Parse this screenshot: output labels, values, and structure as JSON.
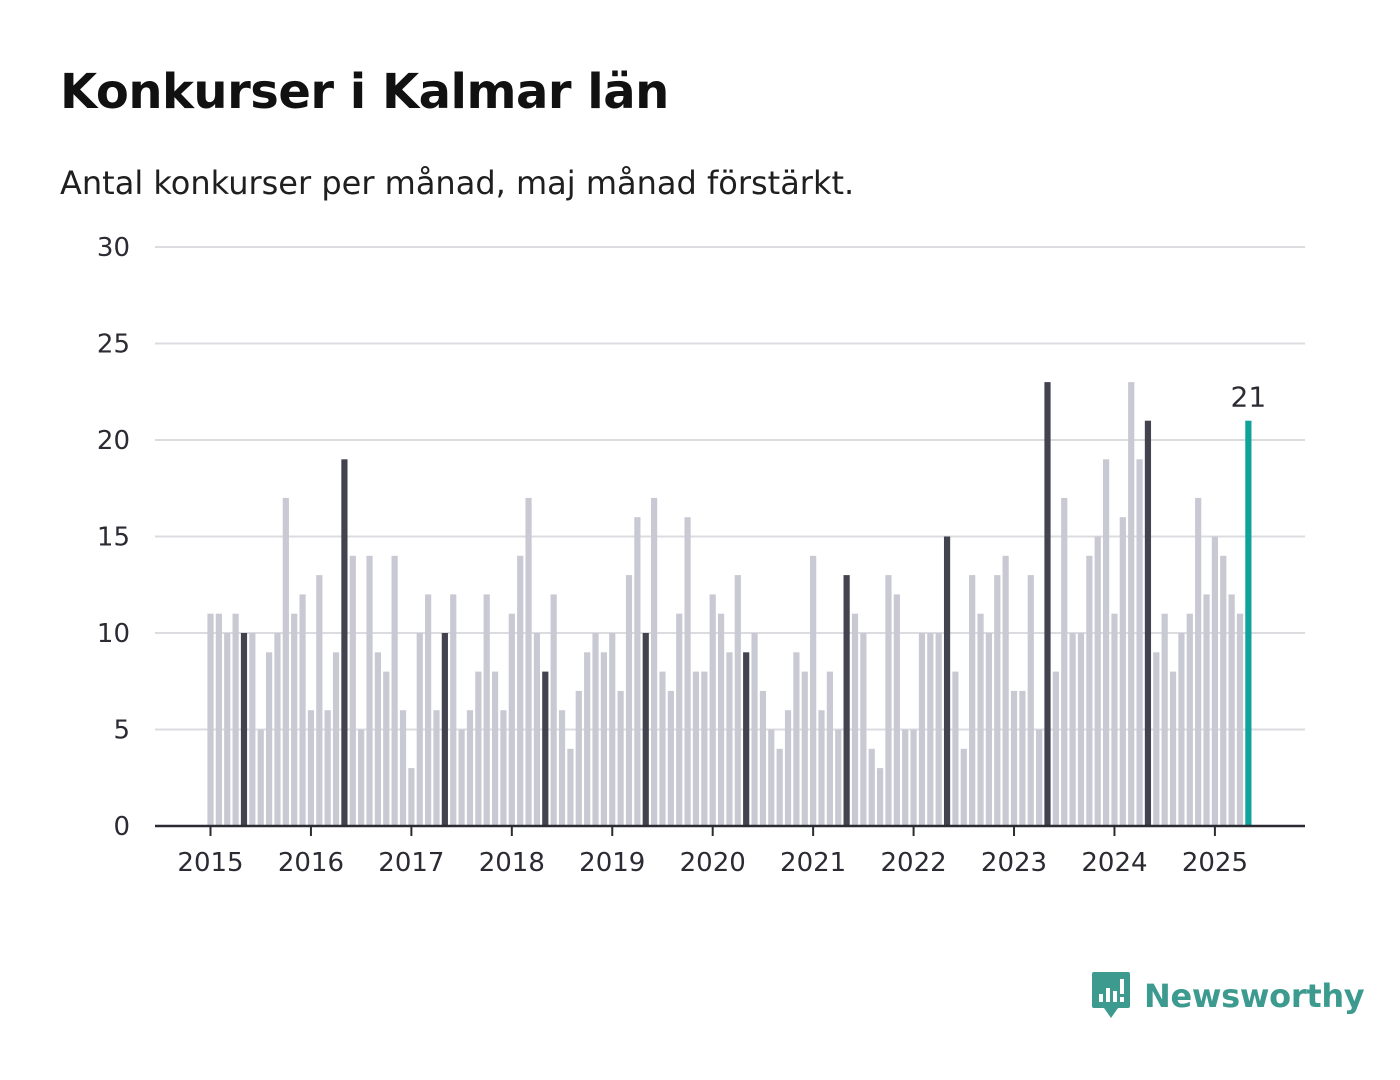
{
  "header": {
    "title": "Konkurser i Kalmar län",
    "subtitle": "Antal konkurser per månad, maj månad förstärkt."
  },
  "brand": {
    "name": "Newsworthy",
    "icon": "newsworthy-logo-icon"
  },
  "colors": {
    "bar_default": "#c9c9d3",
    "bar_highlight": "#43434f",
    "bar_latest": "#0fa39b",
    "grid": "#dcdce0",
    "axis": "#2b2b33",
    "brand": "#3c9a8f"
  },
  "chart_data": {
    "type": "bar",
    "title": "Konkurser i Kalmar län",
    "subtitle": "Antal konkurser per månad, maj månad förstärkt.",
    "xlabel": "",
    "ylabel": "",
    "ylim": [
      0,
      30
    ],
    "yticks": [
      "0",
      "5",
      "10",
      "15",
      "20",
      "25",
      "30"
    ],
    "xticks": [
      "2015",
      "2016",
      "2017",
      "2018",
      "2019",
      "2020",
      "2021",
      "2022",
      "2023",
      "2024",
      "2025"
    ],
    "start": "2015-01",
    "end": "2025-05",
    "highlight_month": "maj",
    "grid": true,
    "legend": "none",
    "values": [
      11,
      11,
      10,
      11,
      10,
      10,
      5,
      9,
      10,
      17,
      11,
      12,
      6,
      13,
      6,
      9,
      19,
      14,
      5,
      14,
      9,
      8,
      14,
      6,
      3,
      10,
      12,
      6,
      10,
      12,
      5,
      6,
      8,
      12,
      8,
      6,
      11,
      14,
      17,
      10,
      8,
      12,
      6,
      4,
      7,
      9,
      10,
      9,
      10,
      7,
      13,
      16,
      10,
      17,
      8,
      7,
      11,
      16,
      8,
      8,
      12,
      11,
      9,
      13,
      9,
      10,
      7,
      5,
      4,
      6,
      9,
      8,
      14,
      6,
      8,
      5,
      13,
      11,
      10,
      4,
      3,
      13,
      12,
      5,
      5,
      10,
      10,
      10,
      15,
      8,
      4,
      13,
      11,
      10,
      13,
      14,
      7,
      7,
      13,
      5,
      23,
      8,
      17,
      10,
      10,
      14,
      15,
      19,
      11,
      16,
      23,
      19,
      21,
      9,
      11,
      8,
      10,
      11,
      17,
      12,
      15,
      14,
      12,
      11,
      21
    ],
    "annotations": [
      {
        "label": "21",
        "date": "2025-05",
        "value": 21
      }
    ]
  }
}
